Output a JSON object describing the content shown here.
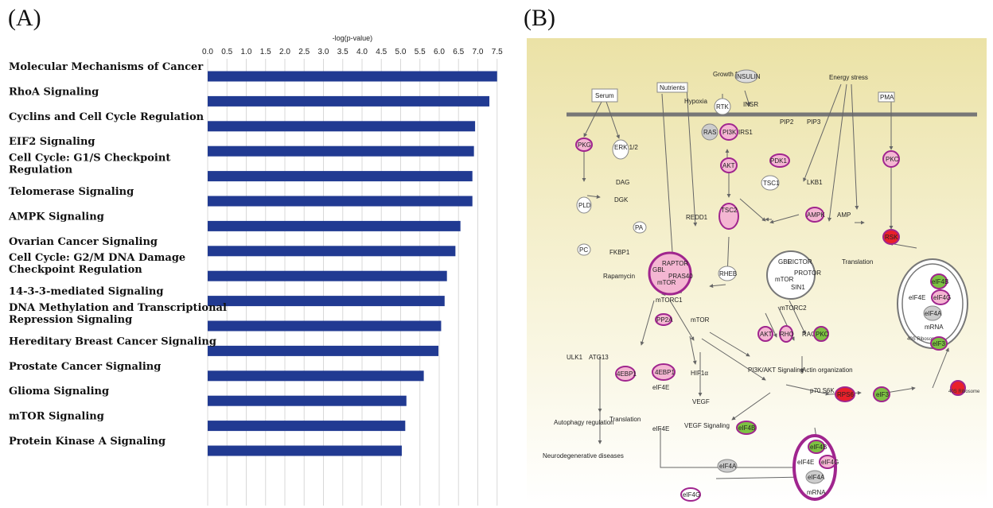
{
  "panel_a_label": "(A)",
  "panel_b_label": "(B)",
  "chart_data": {
    "type": "bar",
    "orientation": "horizontal",
    "title": "",
    "xlabel": "-log(p-value)",
    "ylabel": "",
    "xlim": [
      0,
      7.5
    ],
    "ticks": [
      "0.0",
      "0.5",
      "1.0",
      "1.5",
      "2.0",
      "2.5",
      "3.0",
      "3.5",
      "4.0",
      "4.5",
      "5.0",
      "5.5",
      "6.0",
      "6.5",
      "7.0",
      "7.5"
    ],
    "grid": true,
    "bar_color": "#213a92",
    "categories": [
      [
        "Molecular Mechanisms of Cancer"
      ],
      [
        "RhoA Signaling"
      ],
      [
        "Cyclins and Cell Cycle Regulation"
      ],
      [
        "EIF2 Signaling"
      ],
      [
        "Cell Cycle: G1/S Checkpoint",
        "Regulation"
      ],
      [
        "Telomerase Signaling"
      ],
      [
        "AMPK Signaling"
      ],
      [
        "Ovarian Cancer Signaling"
      ],
      [
        "Cell Cycle: G2/M DNA Damage",
        "Checkpoint Regulation"
      ],
      [
        "14-3-3-mediated Signaling"
      ],
      [
        "DNA Methylation  and Transcriptional",
        "Repression Signaling"
      ],
      [
        "Hereditary Breast Cancer Signaling"
      ],
      [
        "Prostate Cancer Signaling"
      ],
      [
        "Glioma Signaling"
      ],
      [
        "mTOR Signaling"
      ],
      [
        "Protein Kinase A Signaling"
      ]
    ],
    "values": [
      7.5,
      7.3,
      6.93,
      6.9,
      6.86,
      6.86,
      6.55,
      6.42,
      6.2,
      6.14,
      6.05,
      5.98,
      5.6,
      5.15,
      5.12,
      5.03
    ]
  },
  "pathway": {
    "colors": {
      "background_top": "#ece3a8",
      "background_bottom": "#ffffff",
      "membrane": "#777777",
      "pink": "#f4b6d2",
      "magenta": "#a0258e",
      "green": "#7dc242",
      "red": "#e8202a",
      "gray": "#c8c8c8"
    },
    "nodes": [
      {
        "label": "Serum"
      },
      {
        "label": "Nutrients"
      },
      {
        "label": "Growth factor"
      },
      {
        "label": "INSULIN"
      },
      {
        "label": "Energy stress"
      },
      {
        "label": "PMA"
      },
      {
        "label": "Hypoxia"
      },
      {
        "label": "RTK"
      },
      {
        "label": "INSR"
      },
      {
        "label": "RAS"
      },
      {
        "label": "PI3K"
      },
      {
        "label": "IRS1"
      },
      {
        "label": "PIP2"
      },
      {
        "label": "PIP3"
      },
      {
        "label": "PKG"
      },
      {
        "label": "ERK 1/2"
      },
      {
        "label": "DAG"
      },
      {
        "label": "PDK1"
      },
      {
        "label": "PKC"
      },
      {
        "label": "AKT"
      },
      {
        "label": "LKB1"
      },
      {
        "label": "TSC1"
      },
      {
        "label": "PLD"
      },
      {
        "label": "DGK"
      },
      {
        "label": "TSC2"
      },
      {
        "label": "REDD1"
      },
      {
        "label": "AMPK"
      },
      {
        "label": "AMP"
      },
      {
        "label": "PA"
      },
      {
        "label": "RSK"
      },
      {
        "label": "PC"
      },
      {
        "label": "FKBP1"
      },
      {
        "label": "Rapamycin"
      },
      {
        "label": "RAPTOR"
      },
      {
        "label": "GBL"
      },
      {
        "label": "PRAS40"
      },
      {
        "label": "mTOR"
      },
      {
        "label": "mTORC1"
      },
      {
        "label": "RHEB"
      },
      {
        "label": "RICTOR"
      },
      {
        "label": "PROTOR"
      },
      {
        "label": "SIN1"
      },
      {
        "label": "mTORC2"
      },
      {
        "label": "Translation"
      },
      {
        "label": "eIF4B"
      },
      {
        "label": "eIF4E"
      },
      {
        "label": "eIF4G"
      },
      {
        "label": "eIF4A"
      },
      {
        "label": "mRNA"
      },
      {
        "label": "40S Ribosome"
      },
      {
        "label": "eIF3"
      },
      {
        "label": "PP2A"
      },
      {
        "label": "RHO"
      },
      {
        "label": "RAC"
      },
      {
        "label": "ULK1"
      },
      {
        "label": "ATG13"
      },
      {
        "label": "4EBP1"
      },
      {
        "label": "HIF1α"
      },
      {
        "label": "VEGF"
      },
      {
        "label": "PI3K/AKT Signaling"
      },
      {
        "label": "Actin organization"
      },
      {
        "label": "p70 S6K"
      },
      {
        "label": "RPS6"
      },
      {
        "label": "Autophagy regulation"
      },
      {
        "label": "VEGF Signaling"
      },
      {
        "label": "Neurodegenerative diseases"
      }
    ]
  }
}
